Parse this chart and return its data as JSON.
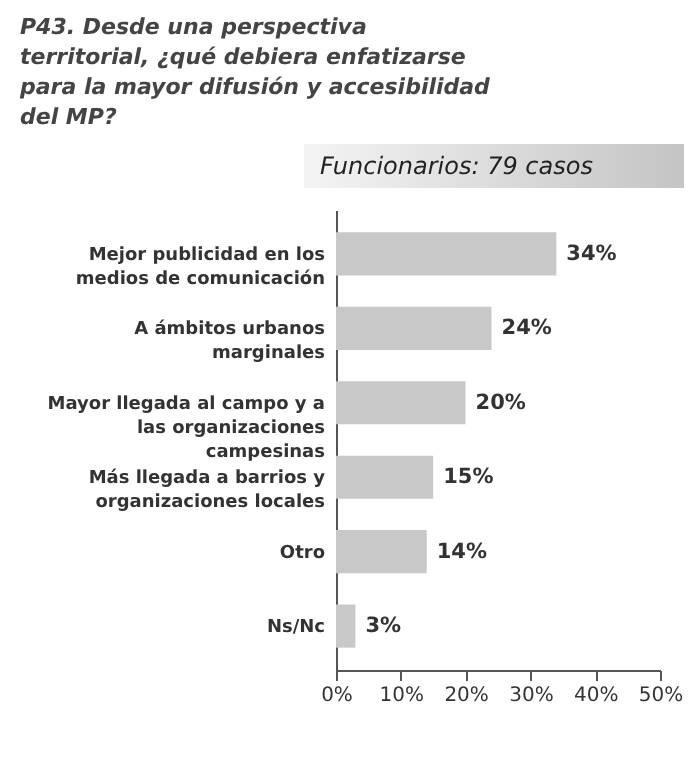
{
  "chart_data": {
    "type": "bar",
    "orientation": "horizontal",
    "title": "P43. Desde una perspectiva territorial, ¿qué debiera enfatizarse para la mayor difusión y accesibilidad del MP?",
    "subtitle": "Funcionarios: 79 casos",
    "categories": [
      "Mejor publicidad en los medios de comunicación",
      "A ámbitos urbanos marginales",
      "Mayor llegada al campo y a las organizaciones campesinas",
      "Más llegada a barrios y organizaciones locales",
      "Otro",
      "Ns/Nc"
    ],
    "values": [
      34,
      24,
      20,
      15,
      14,
      3
    ],
    "value_labels": [
      "34%",
      "24%",
      "20%",
      "15%",
      "14%",
      "3%"
    ],
    "color": "#c8c8c8",
    "xlim": [
      0,
      50
    ],
    "xticks": [
      {
        "value": 0,
        "label": "0%"
      },
      {
        "value": 10,
        "label": "10%"
      },
      {
        "value": 20,
        "label": "20%"
      },
      {
        "value": 30,
        "label": "30%"
      },
      {
        "value": 40,
        "label": "40%"
      },
      {
        "value": 50,
        "label": "50%"
      }
    ],
    "grid": false
  }
}
